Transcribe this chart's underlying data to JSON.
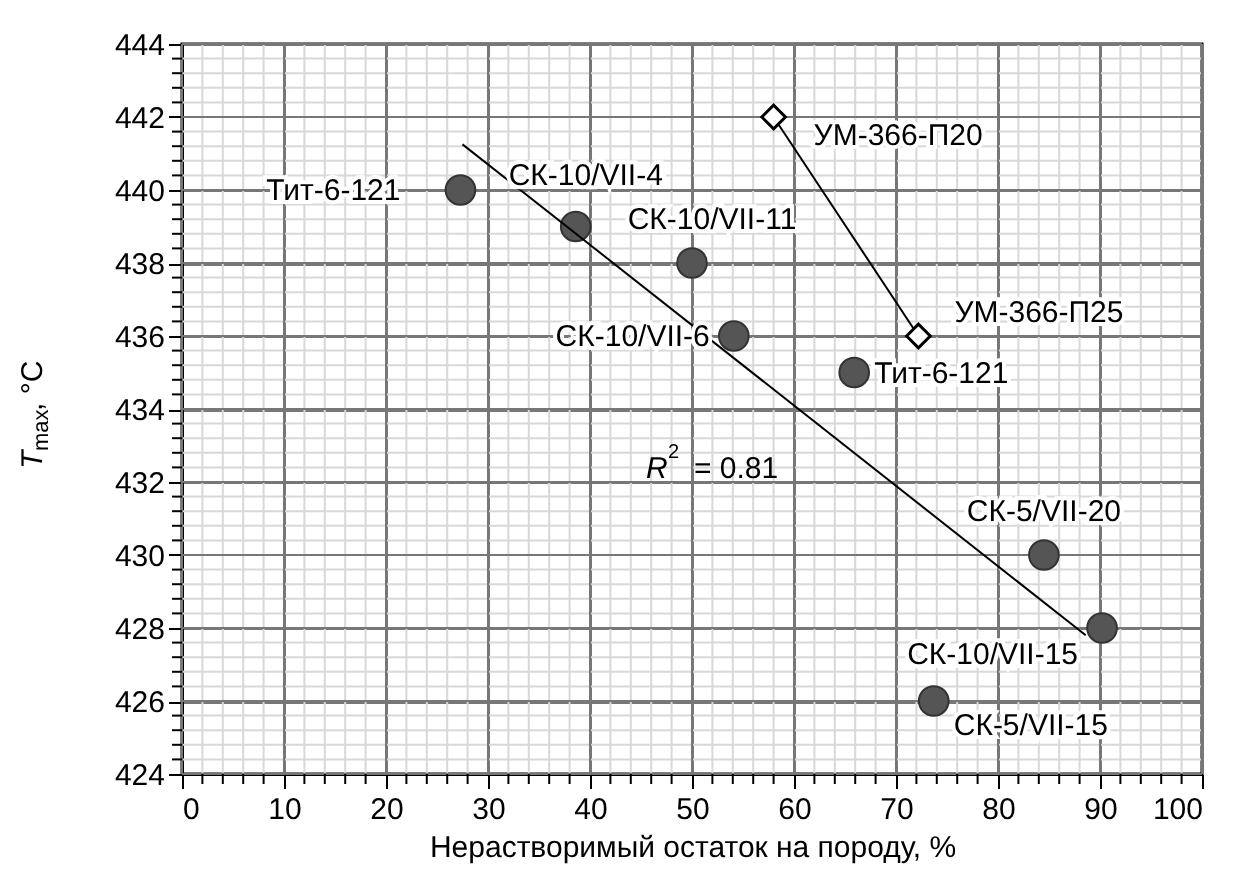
{
  "chart_data": {
    "type": "scatter",
    "xlabel": "Нерастворимый остаток на породу, %",
    "ylabel": "T$_{max}$, °C",
    "xlim": [
      0,
      100
    ],
    "xticks": [
      0,
      10,
      20,
      30,
      40,
      50,
      60,
      70,
      80,
      90,
      100
    ],
    "ylim": [
      424,
      444
    ],
    "yticks": [
      424,
      426,
      428,
      430,
      432,
      434,
      436,
      438,
      440,
      442,
      444
    ],
    "grid": true,
    "series": [
      {
        "marker": "circle",
        "color": "#555555",
        "x": [
          27.3,
          38.6,
          50,
          54.1,
          65.9,
          84.5,
          90.2,
          73.7
        ],
        "values": [
          440,
          439,
          438,
          436,
          435,
          430,
          428,
          426
        ]
      },
      {
        "type": "line",
        "marker": "diamond",
        "color": "#000000",
        "x": [
          58,
          72.2
        ],
        "values": [
          442,
          436
        ]
      },
      {
        "type": "line",
        "marker": "none",
        "color": "#000000",
        "x": [
          27.5,
          88.6
        ],
        "values": [
          441.25,
          427.8
        ]
      }
    ],
    "annotations": [
      {
        "text": "Тит-6-121",
        "x": 27.3,
        "y": 440
      },
      {
        "text": "СК-10/VII-4",
        "x": 38.6,
        "y": 439
      },
      {
        "text": "СК-10/VII-11",
        "x": 50,
        "y": 438
      },
      {
        "text": "СК-10/VII-6",
        "x": 54.1,
        "y": 436
      },
      {
        "text": "Тит-6-121",
        "x": 65.9,
        "y": 435
      },
      {
        "text": "СК-5/VII-20",
        "x": 84.5,
        "y": 430
      },
      {
        "text": "СК-10/VII-15",
        "x": 90.2,
        "y": 428
      },
      {
        "text": "СК-5/VII-15",
        "x": 73.7,
        "y": 426
      },
      {
        "text": "УМ-366-П20",
        "x": 58,
        "y": 442
      },
      {
        "text": "УМ-366-П25",
        "x": 72.2,
        "y": 436
      },
      "R$^{2}$ = 0.81"
    ]
  }
}
